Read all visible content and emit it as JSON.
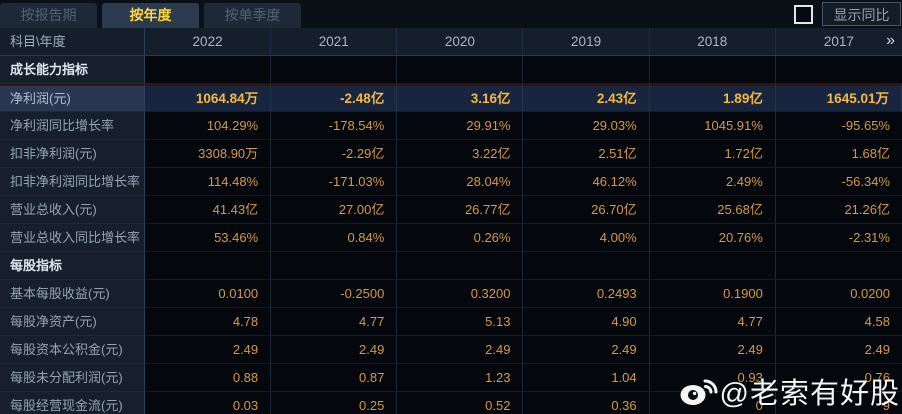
{
  "tabs": {
    "report_period": "按报告期",
    "annual": "按年度",
    "quarterly": "按单季度",
    "active_tab": "按年度"
  },
  "controls": {
    "show_yoy_label": "显示同比",
    "checkbox_checked": false
  },
  "table": {
    "corner_label": "科目\\年度",
    "years": [
      "2022",
      "2021",
      "2020",
      "2019",
      "2018",
      "2017"
    ],
    "more_icon": "»",
    "rows": [
      {
        "type": "section",
        "label": "成长能力指标",
        "values": [
          "",
          "",
          "",
          "",
          "",
          ""
        ]
      },
      {
        "type": "data",
        "highlight": true,
        "label": "净利润(元)",
        "values": [
          "1064.84万",
          "-2.48亿",
          "3.16亿",
          "2.43亿",
          "1.89亿",
          "1645.01万"
        ]
      },
      {
        "type": "data",
        "label": "净利润同比增长率",
        "values": [
          "104.29%",
          "-178.54%",
          "29.91%",
          "29.03%",
          "1045.91%",
          "-95.65%"
        ]
      },
      {
        "type": "data",
        "label": "扣非净利润(元)",
        "values": [
          "3308.90万",
          "-2.29亿",
          "3.22亿",
          "2.51亿",
          "1.72亿",
          "1.68亿"
        ]
      },
      {
        "type": "data",
        "label": "扣非净利润同比增长率",
        "values": [
          "114.48%",
          "-171.03%",
          "28.04%",
          "46.12%",
          "2.49%",
          "-56.34%"
        ]
      },
      {
        "type": "data",
        "label": "营业总收入(元)",
        "values": [
          "41.43亿",
          "27.00亿",
          "26.77亿",
          "26.70亿",
          "25.68亿",
          "21.26亿"
        ]
      },
      {
        "type": "data",
        "label": "营业总收入同比增长率",
        "values": [
          "53.46%",
          "0.84%",
          "0.26%",
          "4.00%",
          "20.76%",
          "-2.31%"
        ]
      },
      {
        "type": "section",
        "label": "每股指标",
        "values": [
          "",
          "",
          "",
          "",
          "",
          ""
        ]
      },
      {
        "type": "data",
        "label": "基本每股收益(元)",
        "values": [
          "0.0100",
          "-0.2500",
          "0.3200",
          "0.2493",
          "0.1900",
          "0.0200"
        ]
      },
      {
        "type": "data",
        "label": "每股净资产(元)",
        "values": [
          "4.78",
          "4.77",
          "5.13",
          "4.90",
          "4.77",
          "4.58"
        ]
      },
      {
        "type": "data",
        "label": "每股资本公积金(元)",
        "values": [
          "2.49",
          "2.49",
          "2.49",
          "2.49",
          "2.49",
          "2.49"
        ]
      },
      {
        "type": "data",
        "label": "每股未分配利润(元)",
        "values": [
          "0.88",
          "0.87",
          "1.23",
          "1.04",
          "0.93",
          "0.76"
        ]
      },
      {
        "type": "data",
        "label": "每股经营现金流(元)",
        "values": [
          "0.03",
          "0.25",
          "0.52",
          "0.36",
          "0",
          "9"
        ]
      }
    ]
  },
  "watermark": {
    "text": "@老索有好股",
    "icon": "weibo-icon"
  },
  "colors": {
    "value_text": "#d89a44",
    "highlight_value_text": "#f6b83e",
    "active_tab_text": "#ffd43e",
    "highlight_row_bg": "#17253e",
    "label_column_bg": "#161f2b",
    "cell_bg": "#04070b"
  }
}
